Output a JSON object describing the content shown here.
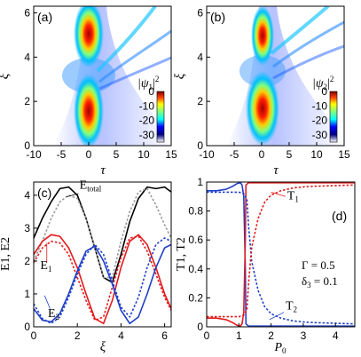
{
  "chart_data": [
    {
      "panel": "a",
      "panel_label": "(a)",
      "type": "heatmap",
      "xlabel": "τ",
      "ylabel": "ξ",
      "xlim": [
        -10,
        15
      ],
      "ylim": [
        0,
        6.3
      ],
      "xticks": [
        "-10",
        "-5",
        "0",
        "5",
        "10",
        "15"
      ],
      "yticks": [
        "0",
        "2",
        "4",
        "6"
      ],
      "colorbar_title": "|ψ1|²",
      "colorbar_title_base": "|ψ",
      "colorbar_title_sub": "1",
      "colorbar_title_tail": "|",
      "colorbar_title_sup": "2",
      "colorbar_ticks": [
        "0",
        "-10",
        "-20",
        "-30"
      ],
      "colorbar_range": [
        -35,
        0
      ]
    },
    {
      "panel": "b",
      "panel_label": "(b)",
      "type": "heatmap",
      "xlabel": "τ",
      "ylabel": "ξ",
      "xlim": [
        -10,
        15
      ],
      "ylim": [
        0,
        6.3
      ],
      "xticks": [
        "-10",
        "-5",
        "0",
        "5",
        "10",
        "15"
      ],
      "yticks": [
        "0",
        "2",
        "4",
        "6"
      ],
      "colorbar_title": "|ψ2|²",
      "colorbar_title_base": "|ψ",
      "colorbar_title_sub": "2",
      "colorbar_title_tail": "|",
      "colorbar_title_sup": "2",
      "colorbar_ticks": [
        "0",
        "-10",
        "-20",
        "-30"
      ],
      "colorbar_range": [
        -35,
        0
      ]
    },
    {
      "panel": "c",
      "panel_label": "(c)",
      "type": "line",
      "xlabel": "ξ",
      "ylabel": "E1, E2",
      "xlim": [
        0,
        6.3
      ],
      "ylim": [
        0,
        4.4
      ],
      "xticks": [
        "0",
        "2",
        "4",
        "6"
      ],
      "yticks": [
        "0",
        "1",
        "2",
        "3",
        "4"
      ],
      "annotations": [
        {
          "text": "E",
          "sub": "total",
          "x": 2.1,
          "y": 4.2,
          "color": "#000000"
        },
        {
          "text": "E",
          "sub": "1",
          "x": 0.3,
          "y": 1.75,
          "color": "#e41a1c"
        },
        {
          "text": "E",
          "sub": "2",
          "x": 0.65,
          "y": 0.3,
          "color": "#1f3fc8"
        }
      ],
      "series": [
        {
          "style": "solid",
          "color": "#000000",
          "x": [
            0,
            0.4,
            0.8,
            1.2,
            1.6,
            2.0,
            2.4,
            2.8,
            3.2,
            3.6,
            4.0,
            4.4,
            4.8,
            5.2,
            5.6,
            6.0,
            6.3
          ],
          "y": [
            2.7,
            3.3,
            3.8,
            4.2,
            4.25,
            4.0,
            3.3,
            2.4,
            1.5,
            1.35,
            2.2,
            3.2,
            3.9,
            4.25,
            4.2,
            4.25,
            4.1
          ]
        },
        {
          "style": "dotted",
          "color": "#999999",
          "x": [
            0,
            0.4,
            0.8,
            1.2,
            1.6,
            2.0,
            2.4,
            2.8,
            3.2,
            3.6,
            4.0,
            4.4,
            4.8,
            5.2,
            5.6,
            6.0,
            6.3
          ],
          "y": [
            2.0,
            2.6,
            3.3,
            3.8,
            4.0,
            3.9,
            3.3,
            2.4,
            1.5,
            1.5,
            2.6,
            3.5,
            4.1,
            4.2,
            3.7,
            3.1,
            2.7
          ]
        },
        {
          "style": "solid",
          "color": "#e41a1c",
          "x": [
            0,
            0.4,
            0.8,
            1.2,
            1.6,
            2.0,
            2.4,
            2.8,
            3.2,
            3.6,
            4.0,
            4.4,
            4.8,
            5.2,
            5.6,
            6.0,
            6.3
          ],
          "y": [
            2.2,
            2.6,
            2.8,
            2.75,
            2.4,
            1.8,
            1.0,
            0.25,
            0.1,
            0.8,
            1.8,
            2.6,
            2.8,
            2.5,
            1.8,
            1.0,
            0.55
          ]
        },
        {
          "style": "dotted",
          "color": "#e41a1c",
          "x": [
            0,
            0.4,
            0.8,
            1.2,
            1.6,
            2.0,
            2.4,
            2.8,
            3.2,
            3.6,
            4.0,
            4.4,
            4.8,
            5.2,
            5.6,
            6.0,
            6.3
          ],
          "y": [
            1.95,
            2.4,
            2.6,
            2.55,
            2.2,
            1.5,
            0.8,
            0.2,
            0.3,
            1.2,
            2.1,
            2.7,
            2.75,
            2.3,
            1.6,
            0.9,
            0.5
          ]
        },
        {
          "style": "solid",
          "color": "#1f3fc8",
          "x": [
            0,
            0.4,
            0.8,
            1.2,
            1.6,
            2.0,
            2.4,
            2.8,
            3.2,
            3.6,
            4.0,
            4.4,
            4.8,
            5.2,
            5.6,
            6.0,
            6.3
          ],
          "y": [
            0.55,
            0.2,
            0.15,
            0.4,
            1.0,
            1.7,
            2.3,
            2.45,
            2.0,
            1.3,
            0.5,
            0.1,
            0.3,
            1.0,
            1.8,
            2.4,
            2.5
          ]
        },
        {
          "style": "dotted",
          "color": "#1f3fc8",
          "x": [
            0,
            0.4,
            0.8,
            1.2,
            1.6,
            2.0,
            2.4,
            2.8,
            3.2,
            3.6,
            4.0,
            4.4,
            4.8,
            5.2,
            5.6,
            6.0,
            6.3
          ],
          "y": [
            0.7,
            0.25,
            0.1,
            0.3,
            0.9,
            1.6,
            2.2,
            2.5,
            2.2,
            1.4,
            0.6,
            0.3,
            0.9,
            1.8,
            2.5,
            2.7,
            2.6
          ]
        }
      ]
    },
    {
      "panel": "d",
      "panel_label": "(d)",
      "type": "line",
      "xlabel": "P0",
      "ylabel": "T1, T2",
      "xlim": [
        0,
        4.6
      ],
      "ylim": [
        0,
        1.0
      ],
      "xticks": [
        "0",
        "1",
        "2",
        "3",
        "4"
      ],
      "yticks": [
        "0",
        "0.2",
        "0.4",
        "0.6",
        "0.8",
        "1"
      ],
      "params": [
        "Γ = 0.5",
        "δ3 = 0.1"
      ],
      "param_lines": [
        {
          "base": "Γ = 0.5",
          "sub": "",
          "tail": ""
        },
        {
          "base": "δ",
          "sub": "3",
          "tail": " = 0.1"
        }
      ],
      "annotations": [
        {
          "text": "T",
          "sub": "1",
          "x": 2.5,
          "y": 0.88,
          "color": "#e41a1c"
        },
        {
          "text": "T",
          "sub": "2",
          "x": 2.45,
          "y": 0.12,
          "color": "#1f3fc8"
        }
      ],
      "series": [
        {
          "style": "solid",
          "color": "#1f3fc8",
          "x": [
            0,
            0.3,
            0.6,
            0.8,
            0.95,
            1.05,
            1.1,
            1.15,
            1.2,
            1.22,
            1.3,
            2.0,
            3.0,
            4.6
          ],
          "y": [
            0.94,
            0.94,
            0.95,
            0.97,
            0.99,
            0.995,
            0.98,
            0.9,
            0.4,
            0.02,
            0.005,
            0.005,
            0.005,
            0.005
          ]
        },
        {
          "style": "solid",
          "color": "#e41a1c",
          "x": [
            0,
            0.3,
            0.6,
            0.8,
            0.95,
            1.05,
            1.1,
            1.15,
            1.2,
            1.22,
            1.3,
            2.0,
            3.0,
            4.6
          ],
          "y": [
            0.06,
            0.06,
            0.05,
            0.03,
            0.01,
            0.005,
            0.02,
            0.1,
            0.6,
            0.98,
            0.995,
            0.995,
            0.995,
            0.995
          ]
        },
        {
          "style": "dotted",
          "color": "#1f3fc8",
          "x": [
            0,
            0.5,
            1.0,
            1.15,
            1.25,
            1.3,
            1.4,
            1.6,
            1.8,
            2.0,
            2.3,
            2.7,
            3.2,
            4.6
          ],
          "y": [
            0.93,
            0.93,
            0.93,
            0.92,
            0.88,
            0.7,
            0.45,
            0.25,
            0.14,
            0.09,
            0.06,
            0.04,
            0.03,
            0.02
          ]
        },
        {
          "style": "dotted",
          "color": "#e41a1c",
          "x": [
            0,
            0.5,
            1.0,
            1.15,
            1.25,
            1.3,
            1.4,
            1.6,
            1.8,
            2.0,
            2.3,
            2.7,
            3.2,
            4.6
          ],
          "y": [
            0.07,
            0.07,
            0.07,
            0.08,
            0.12,
            0.3,
            0.55,
            0.75,
            0.86,
            0.91,
            0.94,
            0.96,
            0.97,
            0.98
          ]
        }
      ]
    }
  ]
}
